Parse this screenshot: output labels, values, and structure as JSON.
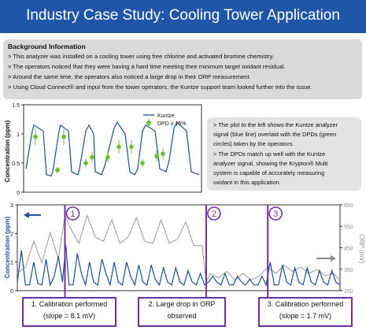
{
  "title": "Industry Case Study: Cooling Tower Application",
  "background": {
    "heading": "Background Information",
    "lines": [
      "> This analyzer was installed on a cooling tower using free chlorine and activated bromine chemistry.",
      "> The operators noticed that they were having a hard time meeting their minimum target oxidant residual.",
      "> Around the same time, the operators also noticed a large drop in their ORP measurement.",
      "> Using Cloud Connect® and input from the tower operators, the Kuntze support team looked further into the issue."
    ]
  },
  "note": {
    "lines": [
      "> The plot to the left shows the Kuntze analyzer",
      "signal (blue line) overlaid with the DPDs (green",
      "circles) taken by the operators.",
      "> The DPDs match up well with the Kuntze",
      "analyzer signal, showing the Krypton® Multi",
      "system is capable of accurately measuring",
      "oxidant in this application."
    ]
  },
  "callouts": [
    {
      "number": "1",
      "line1": "1. Calibration performed",
      "line2": "(slope = 8.1 mV)"
    },
    {
      "number": "2",
      "line1": "2. Large drop in ORP",
      "line2": "observed"
    },
    {
      "number": "3",
      "line1": "3. Calibration performed",
      "line2": "(slope = 1.7 mV)"
    }
  ],
  "colors": {
    "title_bg": "#1f56a8",
    "kuntze_line": "#1f4e8c",
    "dpd": "#6abf2e",
    "orp_line": "#a6a6a6",
    "callout_border": "#7030a0"
  },
  "chart_data": [
    {
      "type": "line",
      "title": "",
      "ylabel": "Concentration (ppm)",
      "ylim": [
        0,
        1.5
      ],
      "yticks": [
        "0",
        "0.5",
        "1",
        "1.5"
      ],
      "grid": false,
      "legend": "top-right",
      "series": [
        {
          "name": "Kuntze",
          "kind": "line",
          "x": [
            0,
            0.4,
            0.5,
            1.1,
            1.3,
            1.6,
            1.7,
            2.1,
            2.2,
            2.7,
            2.9,
            3.3,
            3.4,
            3.8,
            4.0,
            4.3,
            4.4,
            4.8,
            5.0,
            5.6,
            5.8,
            6.3,
            6.6,
            6.9,
            7.1,
            7.4,
            7.6,
            8.2,
            8.5,
            8.9,
            9.1,
            9.4,
            9.6,
            10.2,
            10.5,
            11.0
          ],
          "y": [
            0.4,
            1.05,
            1.15,
            1.05,
            0.3,
            0.28,
            0.35,
            1.05,
            1.15,
            1.05,
            0.35,
            0.3,
            0.4,
            1.05,
            1.15,
            1.0,
            0.35,
            0.3,
            0.45,
            1.1,
            1.2,
            1.0,
            0.35,
            0.3,
            0.4,
            1.05,
            1.15,
            1.05,
            0.4,
            0.35,
            0.55,
            1.1,
            1.2,
            1.05,
            0.35,
            0.3
          ]
        },
        {
          "name": "DPD ± 15%",
          "kind": "points",
          "x": [
            0.6,
            2.0,
            2.4,
            3.8,
            4.2,
            5.2,
            5.9,
            6.7,
            7.4,
            8.3,
            8.7
          ],
          "y": [
            0.95,
            0.38,
            0.95,
            0.5,
            0.6,
            0.6,
            0.78,
            0.78,
            0.5,
            0.62,
            0.66
          ]
        }
      ]
    },
    {
      "type": "line",
      "ylabel": "Concentration (ppm)",
      "y2label": "ORP (mV)",
      "ylim": [
        0,
        3
      ],
      "yticks": [
        "0",
        "1",
        "2",
        "3"
      ],
      "y2lim": [
        250,
        650
      ],
      "y2ticks": [
        "250",
        "350",
        "450",
        "550",
        "650"
      ],
      "events": [
        {
          "label": "1",
          "x": 5.8
        },
        {
          "label": "2",
          "x": 23
        },
        {
          "label": "3",
          "x": 30.5
        }
      ],
      "series": [
        {
          "name": "Concentration",
          "axis": "left",
          "x": [
            0,
            0.5,
            1,
            1.5,
            2,
            2.5,
            3,
            3.5,
            4,
            4.5,
            5,
            5.5,
            5.9,
            6.3,
            6.8,
            7.3,
            7.8,
            8.3,
            8.8,
            9.3,
            9.8,
            10.3,
            10.8,
            11.3,
            11.8,
            12.3,
            12.8,
            13.3,
            13.8,
            14.3,
            14.8,
            15.3,
            15.8,
            16.3,
            16.8,
            17.3,
            17.8,
            18.3,
            18.8,
            19.3,
            19.8,
            20.3,
            20.8,
            21.3,
            21.8,
            22.3,
            22.8,
            23.3,
            23.8,
            24.3,
            24.8,
            25.3,
            25.8,
            26.3,
            26.8,
            27.3,
            27.8,
            28.3,
            28.8,
            29.3,
            29.8,
            30.3,
            30.8,
            31.3,
            31.8,
            32.3,
            32.8,
            33.3,
            33.8,
            34.3,
            34.8,
            35.3,
            35.8,
            36.3,
            36.8,
            37.3,
            37.8,
            38.3,
            38.8,
            39.3
          ],
          "y": [
            0.3,
            1.4,
            0.2,
            0.2,
            1.0,
            0.25,
            0.2,
            1.1,
            0.2,
            0.5,
            1.2,
            0.3,
            1.6,
            0.2,
            0.2,
            1.3,
            0.6,
            0.2,
            1.0,
            0.3,
            0.2,
            1.1,
            0.6,
            0.2,
            1.0,
            0.3,
            0.2,
            1.0,
            0.5,
            0.2,
            0.9,
            0.3,
            0.2,
            0.9,
            0.4,
            0.2,
            0.8,
            0.3,
            0.2,
            0.8,
            0.3,
            0.2,
            0.7,
            0.3,
            0.2,
            0.6,
            0.2,
            0.3,
            0.5,
            0.3,
            0.2,
            0.6,
            0.2,
            0.2,
            0.5,
            0.3,
            0.2,
            0.4,
            0.2,
            0.2,
            0.5,
            0.2,
            1.0,
            0.2,
            0.2,
            0.9,
            0.3,
            0.2,
            0.8,
            0.3,
            0.2,
            0.8,
            0.3,
            0.2,
            0.7,
            0.3,
            0.2,
            0.7,
            0.3,
            0.2
          ]
        },
        {
          "name": "ORP",
          "axis": "right",
          "x": [
            0,
            1,
            2,
            3,
            4,
            5,
            5.8,
            6.5,
            7.5,
            8.5,
            9.5,
            10.5,
            11.5,
            12.5,
            13.5,
            14.5,
            15.5,
            16.5,
            17.5,
            18.5,
            19.5,
            20.5,
            21.5,
            22.5,
            23,
            23.5,
            24.5,
            25.5,
            26.5,
            27.5,
            28.5,
            29.5,
            30.5,
            31.5,
            32.5,
            33.5,
            34.5,
            35.5,
            36.5,
            37.5,
            38.5,
            39.3
          ],
          "y": [
            330,
            360,
            480,
            380,
            520,
            400,
            600,
            540,
            470,
            600,
            500,
            480,
            580,
            470,
            500,
            590,
            480,
            470,
            580,
            470,
            490,
            570,
            460,
            460,
            290,
            330,
            310,
            340,
            300,
            330,
            300,
            320,
            360,
            330,
            370,
            340,
            360,
            330,
            350,
            320,
            330,
            300
          ]
        }
      ]
    }
  ]
}
